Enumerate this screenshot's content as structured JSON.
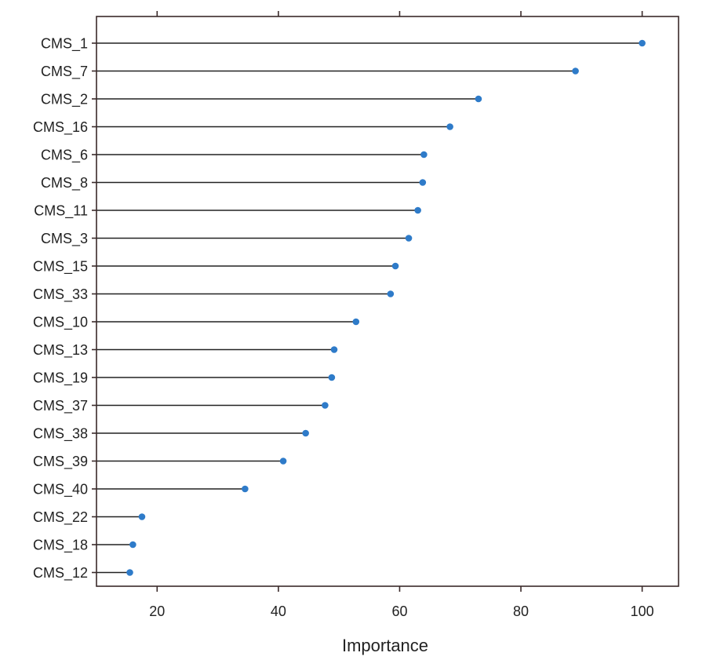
{
  "chart_data": {
    "type": "lollipop",
    "xlabel": "Importance",
    "ylabel": "",
    "xlim": [
      10,
      106
    ],
    "xticks": [
      20,
      40,
      60,
      80,
      100
    ],
    "grid": false,
    "point_color": "#2e7bc9",
    "stem_color": "#222222",
    "frame_color": "#3a2a2a",
    "categories": [
      "CMS_1",
      "CMS_7",
      "CMS_2",
      "CMS_16",
      "CMS_6",
      "CMS_8",
      "CMS_11",
      "CMS_3",
      "CMS_15",
      "CMS_33",
      "CMS_10",
      "CMS_13",
      "CMS_19",
      "CMS_37",
      "CMS_38",
      "CMS_39",
      "CMS_40",
      "CMS_22",
      "CMS_18",
      "CMS_12"
    ],
    "values": [
      100,
      89,
      73,
      68.3,
      64,
      63.8,
      63,
      61.5,
      59.3,
      58.5,
      52.8,
      49.2,
      48.8,
      47.7,
      44.5,
      40.8,
      34.5,
      17.5,
      16,
      15.5
    ]
  }
}
